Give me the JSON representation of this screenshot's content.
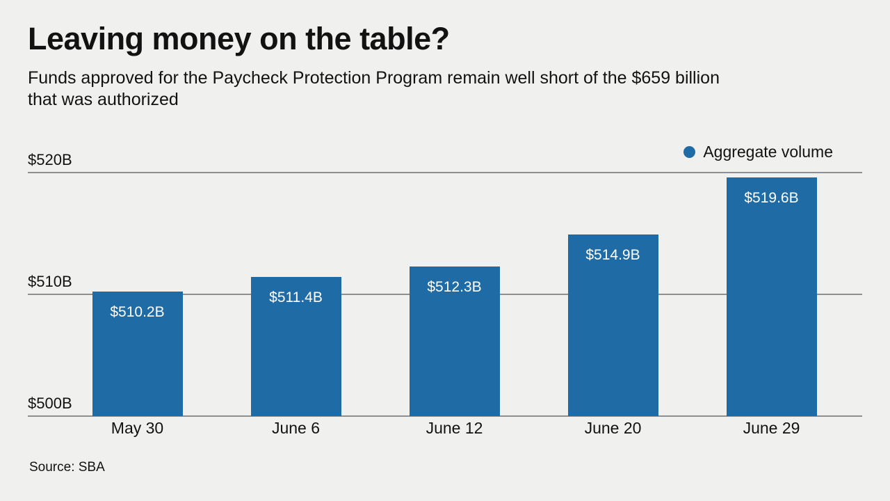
{
  "header": {
    "title": "Leaving money on the table?",
    "subtitle_lines": [
      "Funds approved for the Paycheck Protection Program remain well short of the $659 billion",
      "that was authorized"
    ]
  },
  "legend": {
    "series_label": "Aggregate volume"
  },
  "footer": {
    "source": "Source: SBA"
  },
  "colors": {
    "background": "#f0f1ef",
    "bar": "#1f6ba5",
    "bar_label_text": "#ffffff",
    "gridline": "#8e8f8e",
    "text": "#121212"
  },
  "chart_data": {
    "type": "bar",
    "title": "Leaving money on the table?",
    "subtitle": "Funds approved for the Paycheck Protection Program remain well short of the $659 billion that was authorized",
    "series_name": "Aggregate volume",
    "categories": [
      "May 30",
      "June 6",
      "June 12",
      "June 20",
      "June 29"
    ],
    "values": [
      510.2,
      511.4,
      512.3,
      514.9,
      519.6
    ],
    "value_labels": [
      "$510.2B",
      "$511.4B",
      "$512.3B",
      "$514.9B",
      "$519.6B"
    ],
    "y_ticks": [
      500,
      510,
      520
    ],
    "y_tick_labels": [
      "$500B",
      "$510B",
      "$520B"
    ],
    "ylim": [
      500,
      520
    ],
    "grid": true,
    "legend_position": "top-right",
    "source": "Source: SBA"
  }
}
